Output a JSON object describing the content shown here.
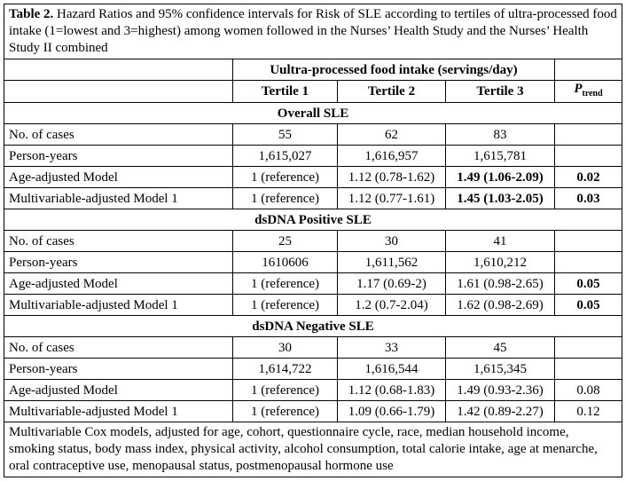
{
  "caption": {
    "label": "Table 2.",
    "text": "Hazard Ratios and 95% confidence intervals for Risk of SLE according to tertiles of ultra-processed food intake (1=lowest and 3=highest) among women followed in the Nurses’ Health Study and the Nurses’ Health Study II combined"
  },
  "header": {
    "group": "Uultra-processed food intake (servings/day)",
    "columns": [
      "Tertile 1",
      "Tertile 2",
      "Tertile 3"
    ],
    "p_trend": {
      "symbol": "P",
      "subscript": "trend"
    }
  },
  "sections": [
    {
      "title": "Overall SLE",
      "rows": [
        [
          "No. of cases",
          "55",
          "62",
          "83",
          null
        ],
        [
          "Person-years",
          "1,615,027",
          "1,616,957",
          "1,615,781",
          null
        ],
        [
          "Age-adjusted Model",
          "1 (reference)",
          "1.12 (0.78-1.62)",
          "1.49 (1.06-2.09)",
          "0.02"
        ],
        [
          "Multivariable-adjusted Model 1",
          "1 (reference)",
          "1.12 (0.77-1.61)",
          "1.45 (1.03-2.05)",
          "0.03"
        ]
      ]
    },
    {
      "title": "dsDNA Positive SLE",
      "rows": [
        [
          "No. of cases",
          "25",
          "30",
          "41",
          null
        ],
        [
          "Person-years",
          "1610606",
          "1,611,562",
          "1,610,212",
          null
        ],
        [
          "Age-adjusted Model",
          "1 (reference)",
          "1.17 (0.69-2)",
          "1.61 (0.98-2.65)",
          "0.05"
        ],
        [
          "Multivariable-adjusted Model 1",
          "1 (reference)",
          "1.2 (0.7-2.04)",
          "1.62 (0.98-2.69)",
          "0.05"
        ]
      ]
    },
    {
      "title": "dsDNA Negative SLE",
      "rows": [
        [
          "No. of cases",
          "30",
          "33",
          "45",
          null
        ],
        [
          "Person-years",
          "1,614,722",
          "1,616,544",
          "1,615,345",
          null
        ],
        [
          "Age-adjusted Model",
          "1 (reference)",
          "1.12 (0.68-1.83)",
          "1.49 (0.93-2.36)",
          "0.08"
        ],
        [
          "Multivariable-adjusted Model 1",
          "1 (reference)",
          "1.09 (0.66-1.79)",
          "1.42 (0.89-2.27)",
          "0.12"
        ]
      ]
    }
  ],
  "footnote": "Multivariable Cox models, adjusted for age, cohort, questionnaire cycle, race, median household income, smoking status, body mass index, physical activity, alcohol consumption, total calorie intake, age at menarche, oral contraceptive use, menopausal status, postmenopausal hormone use"
}
